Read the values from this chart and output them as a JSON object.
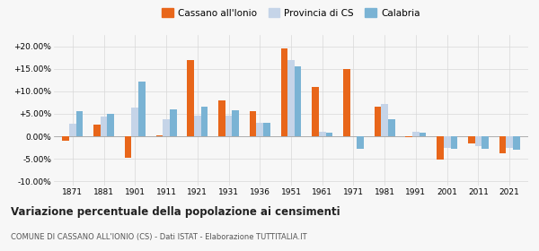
{
  "years": [
    1871,
    1881,
    1901,
    1911,
    1921,
    1931,
    1936,
    1951,
    1961,
    1971,
    1981,
    1991,
    2001,
    2011,
    2021
  ],
  "cassano": [
    -1.0,
    2.5,
    -4.8,
    0.3,
    17.0,
    8.0,
    5.5,
    19.5,
    11.0,
    15.0,
    6.5,
    -0.2,
    -5.2,
    -1.5,
    -3.8
  ],
  "provincia": [
    2.8,
    4.3,
    6.3,
    3.8,
    4.5,
    4.5,
    3.0,
    17.0,
    1.0,
    0.0,
    7.2,
    1.0,
    -2.5,
    -2.2,
    -2.5
  ],
  "calabria": [
    5.5,
    5.0,
    12.2,
    6.0,
    6.5,
    5.8,
    2.9,
    15.5,
    0.9,
    -2.8,
    3.7,
    0.8,
    -2.8,
    -2.8,
    -3.0
  ],
  "color_cassano": "#e8661a",
  "color_provincia": "#c5d4e8",
  "color_calabria": "#7ab3d4",
  "title": "Variazione percentuale della popolazione ai censimenti",
  "subtitle": "COMUNE DI CASSANO ALL'IONIO (CS) - Dati ISTAT - Elaborazione TUTTITALIA.IT",
  "ylim": [
    -11.0,
    22.5
  ],
  "yticks": [
    -10.0,
    -5.0,
    0.0,
    5.0,
    10.0,
    15.0,
    20.0
  ],
  "background_color": "#f7f7f7",
  "grid_color": "#d8d8d8"
}
